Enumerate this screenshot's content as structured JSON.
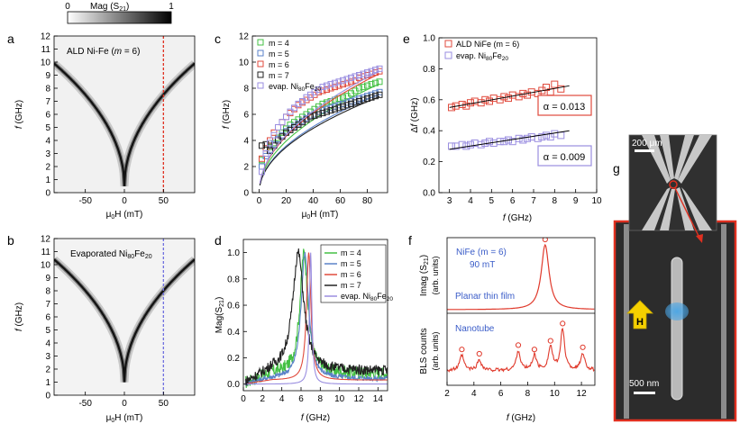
{
  "chart_data": [
    {
      "panel": "a",
      "type": "heatmap",
      "colorbar": {
        "label": "Mag (S",
        "label_sub": "21",
        "label_end": ")",
        "min": "0",
        "max": "1"
      },
      "label_pre": "ALD Ni-Fe (",
      "label_m": "m",
      "label_post": " = 6)",
      "xlabel": "μ",
      "xlabel_sub": "0",
      "xlabel_end": "H (mT)",
      "ylabel_f": "f",
      "ylabel_end": " (GHz)",
      "xlim": [
        -90,
        90
      ],
      "ylim": [
        0,
        12
      ],
      "xticks": [
        "-50",
        "0",
        "50"
      ],
      "yticks": [
        "0",
        "1",
        "2",
        "3",
        "4",
        "5",
        "6",
        "7",
        "8",
        "9",
        "10",
        "11",
        "12"
      ],
      "dashed_line_x": 50,
      "dashed_color": "#e03020",
      "dispersion": {
        "f0": 0.5,
        "A": 9.4,
        "B": 0.7
      }
    },
    {
      "panel": "b",
      "type": "heatmap",
      "label_pre": "Evaporated Ni",
      "label_s1": "80",
      "label_mid": "Fe",
      "label_s2": "20",
      "xlabel": "μ",
      "xlabel_sub": "0",
      "xlabel_end": "H (mT)",
      "ylabel_f": "f",
      "ylabel_end": " (GHz)",
      "xlim": [
        -90,
        90
      ],
      "ylim": [
        0,
        12
      ],
      "xticks": [
        "-50",
        "0",
        "50"
      ],
      "yticks": [
        "0",
        "1",
        "2",
        "3",
        "4",
        "5",
        "6",
        "7",
        "8",
        "9",
        "10",
        "11",
        "12"
      ],
      "dashed_line_x": 50,
      "dashed_color": "#7070e0",
      "dispersion": {
        "f0": 1.0,
        "A": 9.4,
        "B": 0.75
      }
    },
    {
      "panel": "c",
      "type": "scatter",
      "xlabel": "μ",
      "xlabel_sub": "0",
      "xlabel_end": "H (mT)",
      "ylabel_f": "f",
      "ylabel_end": " (GHz)",
      "xlim": [
        -5,
        95
      ],
      "ylim": [
        0,
        12
      ],
      "xticks": [
        "0",
        "20",
        "40",
        "60",
        "80"
      ],
      "yticks": [
        "0",
        "2",
        "4",
        "6",
        "8",
        "10",
        "12"
      ],
      "legend": [
        {
          "label": "m = 4",
          "color": "#44c044"
        },
        {
          "label": "m = 5",
          "color": "#5a82c8"
        },
        {
          "label": "m = 6",
          "color": "#e04a3c"
        },
        {
          "label": "m = 7",
          "color": "#222222"
        },
        {
          "label_pre": "evap. Ni",
          "s1": "80",
          "mid": "Fe",
          "s2": "20",
          "color": "#9a8ee0"
        }
      ],
      "x": [
        2,
        5,
        8,
        11,
        14,
        17,
        20,
        23,
        26,
        29,
        32,
        35,
        38,
        41,
        44,
        47,
        50,
        53,
        56,
        59,
        62,
        65,
        68,
        71,
        74,
        77,
        80,
        83,
        86,
        89
      ],
      "series": [
        {
          "name": "m = 4",
          "color": "#44c044",
          "values": [
            2.5,
            3.0,
            3.5,
            3.8,
            4.2,
            4.6,
            4.9,
            5.2,
            5.4,
            5.6,
            5.8,
            6.0,
            6.2,
            6.4,
            6.6,
            6.8,
            6.9,
            7.0,
            7.1,
            7.2,
            7.3,
            7.4,
            7.6,
            7.8,
            8.0,
            8.1,
            8.2,
            8.3,
            8.4,
            8.5
          ]
        },
        {
          "name": "m = 5",
          "color": "#5a82c8",
          "values": [
            2.0,
            2.8,
            3.3,
            3.7,
            4.1,
            4.4,
            4.7,
            4.9,
            5.1,
            5.3,
            5.5,
            5.7,
            5.9,
            6.0,
            6.2,
            6.3,
            6.4,
            6.5,
            6.6,
            6.7,
            6.8,
            6.9,
            7.0,
            7.1,
            7.2,
            7.3,
            7.4,
            7.5,
            7.6,
            7.7
          ]
        },
        {
          "name": "m = 6",
          "color": "#e04a3c",
          "values": [
            2.6,
            3.4,
            4.0,
            4.6,
            5.0,
            5.4,
            5.8,
            6.1,
            6.4,
            6.7,
            6.9,
            7.1,
            7.3,
            7.5,
            7.7,
            7.8,
            7.9,
            8.0,
            8.1,
            8.2,
            8.3,
            8.4,
            8.5,
            8.6,
            8.8,
            8.9,
            9.0,
            9.1,
            9.2,
            9.3
          ]
        },
        {
          "name": "m = 7",
          "color": "#222222",
          "values": [
            3.6,
            3.7,
            3.2,
            3.6,
            4.0,
            4.3,
            4.6,
            4.8,
            5.0,
            5.2,
            5.4,
            5.6,
            5.8,
            5.9,
            6.0,
            6.1,
            6.2,
            6.3,
            6.4,
            6.5,
            6.6,
            6.7,
            6.8,
            6.9,
            7.0,
            7.1,
            7.2,
            7.3,
            7.4,
            7.5
          ]
        },
        {
          "name": "evap. Ni80Fe20",
          "color": "#9a8ee0",
          "values": [
            1.6,
            3.0,
            3.8,
            4.4,
            5.0,
            5.4,
            5.8,
            6.2,
            6.5,
            6.8,
            7.0,
            7.3,
            7.5,
            7.7,
            7.9,
            8.1,
            8.2,
            8.3,
            8.4,
            8.5,
            8.6,
            8.7,
            8.8,
            8.9,
            9.0,
            9.1,
            9.2,
            9.3,
            9.4,
            9.5
          ]
        }
      ]
    },
    {
      "panel": "d",
      "type": "line",
      "xlabel_f": "f",
      "xlabel_end": " (GHz)",
      "ylabel_pre": "Mag(S",
      "ylabel_sub": "21",
      "ylabel_end": ")",
      "xlim": [
        0,
        15
      ],
      "ylim": [
        -0.05,
        1.1
      ],
      "xticks": [
        "0",
        "2",
        "4",
        "6",
        "8",
        "10",
        "12",
        "14"
      ],
      "yticks": [
        "0.0",
        "0.2",
        "0.4",
        "0.6",
        "0.8",
        "1.0"
      ],
      "legend": [
        {
          "label": "m = 4",
          "color": "#44c044"
        },
        {
          "label": "m = 5",
          "color": "#5a82c8"
        },
        {
          "label": "m = 6",
          "color": "#e04a3c"
        },
        {
          "label": "m = 7",
          "color": "#222222"
        },
        {
          "label_pre": "evap. Ni",
          "s1": "80",
          "mid": "Fe",
          "s2": "20",
          "color": "#9a8ee0"
        }
      ],
      "series": [
        {
          "name": "m = 4",
          "color": "#44c044",
          "peak": 6.3,
          "width": 1.0,
          "base": 0.08,
          "noise": 0.05
        },
        {
          "name": "m = 5",
          "color": "#5a82c8",
          "peak": 6.4,
          "width": 0.95,
          "base": 0.04,
          "noise": 0.02
        },
        {
          "name": "m = 6",
          "color": "#e04a3c",
          "peak": 6.8,
          "width": 0.55,
          "base": 0.03,
          "noise": 0.0
        },
        {
          "name": "m = 7",
          "color": "#222222",
          "peak": 5.7,
          "width": 1.4,
          "base": 0.1,
          "noise": 0.04
        },
        {
          "name": "evap. Ni80Fe20",
          "color": "#9a8ee0",
          "peak": 7.0,
          "width": 0.3,
          "base": 0.0,
          "noise": 0.0
        }
      ]
    },
    {
      "panel": "e",
      "type": "scatter",
      "xlabel_f": "f",
      "xlabel_end": " (GHz)",
      "ylabel_pre": "Δ",
      "ylabel_f": "f",
      "ylabel_end": " (GHz)",
      "xlim": [
        2.5,
        10
      ],
      "ylim": [
        0.0,
        1.0
      ],
      "xticks": [
        "3",
        "4",
        "5",
        "6",
        "7",
        "8",
        "9",
        "10"
      ],
      "yticks": [
        "0.0",
        "0.2",
        "0.4",
        "0.6",
        "0.8",
        "1.0"
      ],
      "legend": [
        {
          "label": "ALD NiFe (m = 6)",
          "color": "#e04a3c"
        },
        {
          "label_pre": "evap. Ni",
          "s1": "80",
          "mid": "Fe",
          "s2": "20",
          "color": "#9a8ee0"
        }
      ],
      "annotations": [
        {
          "text": "α = 0.013",
          "color": "#e04a3c"
        },
        {
          "text": "α = 0.009",
          "color": "#9a8ee0"
        }
      ],
      "x": [
        3.1,
        3.3,
        3.6,
        3.8,
        4.0,
        4.2,
        4.5,
        4.7,
        4.9,
        5.1,
        5.4,
        5.6,
        5.8,
        6.0,
        6.3,
        6.5,
        6.7,
        6.9,
        7.2,
        7.4,
        7.6,
        7.8,
        8.0,
        8.3
      ],
      "series": [
        {
          "name": "ALD NiFe",
          "color": "#e04a3c",
          "values": [
            0.55,
            0.56,
            0.57,
            0.56,
            0.58,
            0.59,
            0.58,
            0.6,
            0.59,
            0.61,
            0.6,
            0.62,
            0.61,
            0.63,
            0.62,
            0.64,
            0.63,
            0.65,
            0.64,
            0.66,
            0.68,
            0.65,
            0.7,
            0.67
          ],
          "fit": [
            [
              3.0,
              0.55
            ],
            [
              8.7,
              0.69
            ]
          ]
        },
        {
          "name": "evap. Ni80Fe20",
          "color": "#9a8ee0",
          "values": [
            0.3,
            0.3,
            0.31,
            0.3,
            0.31,
            0.32,
            0.31,
            0.32,
            0.33,
            0.32,
            0.33,
            0.33,
            0.34,
            0.33,
            0.35,
            0.34,
            0.35,
            0.36,
            0.35,
            0.36,
            0.37,
            0.36,
            0.38,
            0.37
          ],
          "fit": [
            [
              3.0,
              0.28
            ],
            [
              8.7,
              0.4
            ]
          ]
        }
      ]
    },
    {
      "panel": "f",
      "type": "line",
      "xlabel_f": "f",
      "xlabel_end": " (GHz)",
      "xlim": [
        2,
        13
      ],
      "xticks": [
        "2",
        "4",
        "6",
        "8",
        "10",
        "12"
      ],
      "top": {
        "ylabel1_pre": "Imag (S",
        "ylabel1_sub": "21",
        "ylabel1_end": ")",
        "ylabel2": "(arb. units)",
        "text1": "NiFe (m = 6)",
        "text2": "90 mT",
        "text3": "Planar thin film",
        "peak": 9.3,
        "circle_peaks": [
          9.3
        ]
      },
      "bottom": {
        "ylabel1": "BLS counts",
        "ylabel2": "(arb. units)",
        "text1": "Nanotube",
        "peaks": [
          3.1,
          4.4,
          7.3,
          8.5,
          9.7,
          10.6,
          12.1
        ],
        "heights": [
          0.35,
          0.25,
          0.45,
          0.35,
          0.55,
          0.95,
          0.4
        ]
      }
    }
  ],
  "panel_labels": [
    "a",
    "b",
    "c",
    "d",
    "e",
    "f",
    "g"
  ],
  "micrograph": {
    "scale_top": "200 μm",
    "scale_bottom": "500 nm",
    "field_label": "H",
    "border_color": "#e03020"
  }
}
